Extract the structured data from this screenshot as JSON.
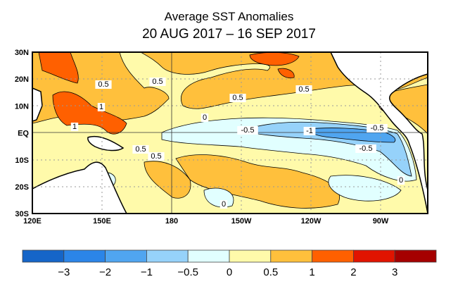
{
  "title": "Average SST Anomalies",
  "subtitle": "20 AUG 2017 – 16 SEP 2017",
  "map": {
    "lon_labels": [
      "120E",
      "150E",
      "180",
      "150W",
      "120W",
      "90W"
    ],
    "lat_labels": [
      "30N",
      "20N",
      "10N",
      "EQ",
      "10S",
      "20S",
      "30S"
    ],
    "lon_range": [
      "120E",
      "70W"
    ],
    "lat_range": [
      "30S",
      "30N"
    ],
    "grid": "dotted",
    "contour_labels": [
      "0.5",
      "0.5",
      "0.5",
      "0.5",
      "1",
      "1",
      "0.5",
      "0.5",
      "0",
      "-0.5",
      "-1",
      "-0.5",
      "-0.5",
      "0",
      "0"
    ]
  },
  "colorbar": {
    "colors": [
      "#1565C8",
      "#2B85E8",
      "#50A5F0",
      "#96D2FA",
      "#E1FFFF",
      "#FFFAAA",
      "#FFC03C",
      "#FF6000",
      "#E11400",
      "#A50000"
    ],
    "labels": [
      "−3",
      "−2",
      "−1",
      "−0.5",
      "0",
      "0.5",
      "1",
      "2",
      "3"
    ]
  }
}
